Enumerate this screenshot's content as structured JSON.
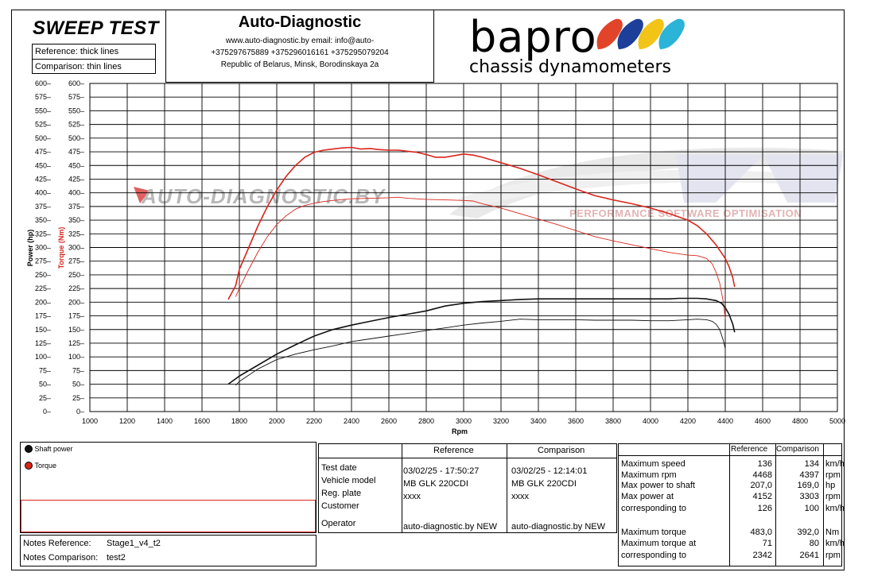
{
  "header": {
    "title": "SWEEP TEST",
    "reference_label": "Reference: thick lines",
    "comparison_label": "Comparison: thin lines"
  },
  "contact": {
    "company": "Auto-Diagnostic",
    "web_email": "www.auto-diagnostic.by     email: info@auto-",
    "phones": "+375297675889   +375296016161   +375295079204",
    "address": "Republic of Belarus, Minsk, Borodinskaya 2a"
  },
  "logo": {
    "brand": "bapro",
    "tagline": "chassis dynamometers",
    "colors": [
      "#e2442a",
      "#1d3f9a",
      "#f2c417",
      "#2bb3d8"
    ]
  },
  "watermark": {
    "main": "AUTO-DIAGNOSTIC.BY",
    "sub": "PERFORMANCE SOFTWARE OPTIMISATION"
  },
  "chart_data": {
    "type": "line",
    "x_label": "Rpm",
    "y_label_power": "Power (hp)",
    "y_label_torque": "Torque (Nm)",
    "xlim": [
      1000,
      5000
    ],
    "ylim": [
      0,
      600
    ],
    "x_ticks": [
      1000,
      1200,
      1400,
      1600,
      1800,
      2000,
      2200,
      2400,
      2600,
      2800,
      3000,
      3200,
      3400,
      3600,
      3800,
      4000,
      4200,
      4400,
      4600,
      4800,
      5000
    ],
    "y_ticks": [
      0,
      25,
      50,
      75,
      100,
      125,
      150,
      175,
      200,
      225,
      250,
      275,
      300,
      325,
      350,
      375,
      400,
      425,
      450,
      475,
      500,
      525,
      550,
      575,
      600
    ],
    "grid": true,
    "series": [
      {
        "name": "Torque",
        "run": "Reference",
        "color": "#d8261c",
        "width": 1.6,
        "x": [
          1740,
          1780,
          1800,
          1850,
          1900,
          1950,
          2000,
          2050,
          2100,
          2150,
          2200,
          2250,
          2300,
          2350,
          2400,
          2450,
          2500,
          2550,
          2600,
          2650,
          2700,
          2750,
          2800,
          2850,
          2900,
          2950,
          3000,
          3050,
          3100,
          3150,
          3200,
          3300,
          3400,
          3500,
          3600,
          3700,
          3800,
          3900,
          4000,
          4100,
          4200,
          4250,
          4300,
          4350,
          4380,
          4400,
          4420,
          4440,
          4450
        ],
        "y": [
          205,
          230,
          260,
          300,
          340,
          375,
          405,
          430,
          450,
          465,
          474,
          478,
          480,
          482,
          483,
          480,
          481,
          479,
          478,
          478,
          476,
          474,
          470,
          465,
          465,
          468,
          471,
          469,
          465,
          460,
          455,
          445,
          433,
          420,
          407,
          395,
          387,
          380,
          372,
          362,
          350,
          340,
          325,
          305,
          290,
          280,
          265,
          245,
          228
        ]
      },
      {
        "name": "Torque",
        "run": "Comparison",
        "color": "#d8261c",
        "width": 0.9,
        "x": [
          1780,
          1800,
          1850,
          1900,
          1950,
          2000,
          2050,
          2100,
          2150,
          2200,
          2250,
          2300,
          2400,
          2500,
          2600,
          2650,
          2700,
          2800,
          2900,
          3000,
          3050,
          3100,
          3200,
          3300,
          3400,
          3500,
          3600,
          3700,
          3800,
          3900,
          4000,
          4100,
          4200,
          4250,
          4300,
          4330,
          4350,
          4370,
          4390,
          4400
        ],
        "y": [
          210,
          225,
          260,
          292,
          320,
          342,
          358,
          370,
          377,
          381,
          384,
          386,
          389,
          390,
          391,
          392,
          390,
          388,
          387,
          386,
          385,
          380,
          372,
          362,
          352,
          342,
          331,
          320,
          312,
          305,
          298,
          291,
          286,
          285,
          280,
          270,
          255,
          235,
          200,
          170
        ]
      },
      {
        "name": "Shaft power",
        "run": "Reference",
        "color": "#111111",
        "width": 1.6,
        "x": [
          1740,
          1800,
          1900,
          2000,
          2100,
          2200,
          2300,
          2400,
          2500,
          2600,
          2700,
          2800,
          2900,
          3000,
          3100,
          3200,
          3300,
          3400,
          3500,
          3600,
          3700,
          3800,
          3900,
          4000,
          4100,
          4152,
          4200,
          4250,
          4300,
          4350,
          4380,
          4400,
          4420,
          4440,
          4450
        ],
        "y": [
          50,
          65,
          85,
          105,
          122,
          138,
          150,
          158,
          165,
          172,
          178,
          184,
          193,
          198,
          201,
          203,
          205,
          206,
          206,
          206,
          206,
          206,
          206,
          206,
          206,
          207,
          207,
          207,
          206,
          203,
          198,
          190,
          178,
          160,
          145
        ]
      },
      {
        "name": "Shaft power",
        "run": "Comparison",
        "color": "#111111",
        "width": 0.9,
        "x": [
          1780,
          1800,
          1900,
          2000,
          2100,
          2200,
          2300,
          2400,
          2500,
          2600,
          2700,
          2800,
          2900,
          3000,
          3100,
          3200,
          3303,
          3400,
          3500,
          3600,
          3700,
          3800,
          3900,
          4000,
          4100,
          4200,
          4250,
          4300,
          4330,
          4350,
          4370,
          4390,
          4400
        ],
        "y": [
          48,
          55,
          78,
          95,
          105,
          113,
          120,
          128,
          133,
          138,
          143,
          148,
          153,
          158,
          162,
          165,
          169,
          168,
          168,
          168,
          167,
          167,
          167,
          166,
          166,
          168,
          169,
          168,
          165,
          160,
          150,
          130,
          115
        ]
      }
    ]
  },
  "legend": {
    "items": [
      {
        "label": "Shaft power",
        "color": "#111111"
      },
      {
        "label": "Torque",
        "color": "#d8261c"
      }
    ]
  },
  "notes": {
    "ref_label": "Notes Reference:",
    "ref_value": "Stage1_v4_t2",
    "cmp_label": "Notes Comparison:",
    "cmp_value": "test2"
  },
  "info_table": {
    "col_reference": "Reference",
    "col_comparison": "Comparison",
    "rows": [
      {
        "label": "Test date",
        "ref": "03/02/25 - 17:50:27",
        "cmp": "03/02/25 - 12:14:01"
      },
      {
        "label": "Vehicle model",
        "ref": "MB GLK 220CDI",
        "cmp": "MB GLK 220CDI"
      },
      {
        "label": "Reg. plate",
        "ref": "xxxx",
        "cmp": "xxxx"
      },
      {
        "label": "Customer",
        "ref": "",
        "cmp": ""
      },
      {
        "label": "Operator",
        "ref": "auto-diagnostic.by NEW",
        "cmp": "auto-diagnostic.by NEW"
      }
    ]
  },
  "results_table": {
    "col_reference": "Reference",
    "col_comparison": "Comparison",
    "rows": [
      {
        "label": "Maximum speed",
        "ref": "136",
        "cmp": "134",
        "unit": "km/h"
      },
      {
        "label": "Maximum rpm",
        "ref": "4468",
        "cmp": "4397",
        "unit": "rpm"
      },
      {
        "label": "Max power to shaft",
        "ref": "207,0",
        "cmp": "169,0",
        "unit": "hp"
      },
      {
        "label": "Max power at",
        "ref": "4152",
        "cmp": "3303",
        "unit": "rpm"
      },
      {
        "label": "corresponding to",
        "ref": "126",
        "cmp": "100",
        "unit": "km/h"
      },
      {
        "label": "Maximum torque",
        "ref": "483,0",
        "cmp": "392,0",
        "unit": "Nm"
      },
      {
        "label": "Maximum torque at",
        "ref": "71",
        "cmp": "80",
        "unit": "km/h"
      },
      {
        "label": "corresponding to",
        "ref": "2342",
        "cmp": "2641",
        "unit": "rpm"
      }
    ]
  }
}
